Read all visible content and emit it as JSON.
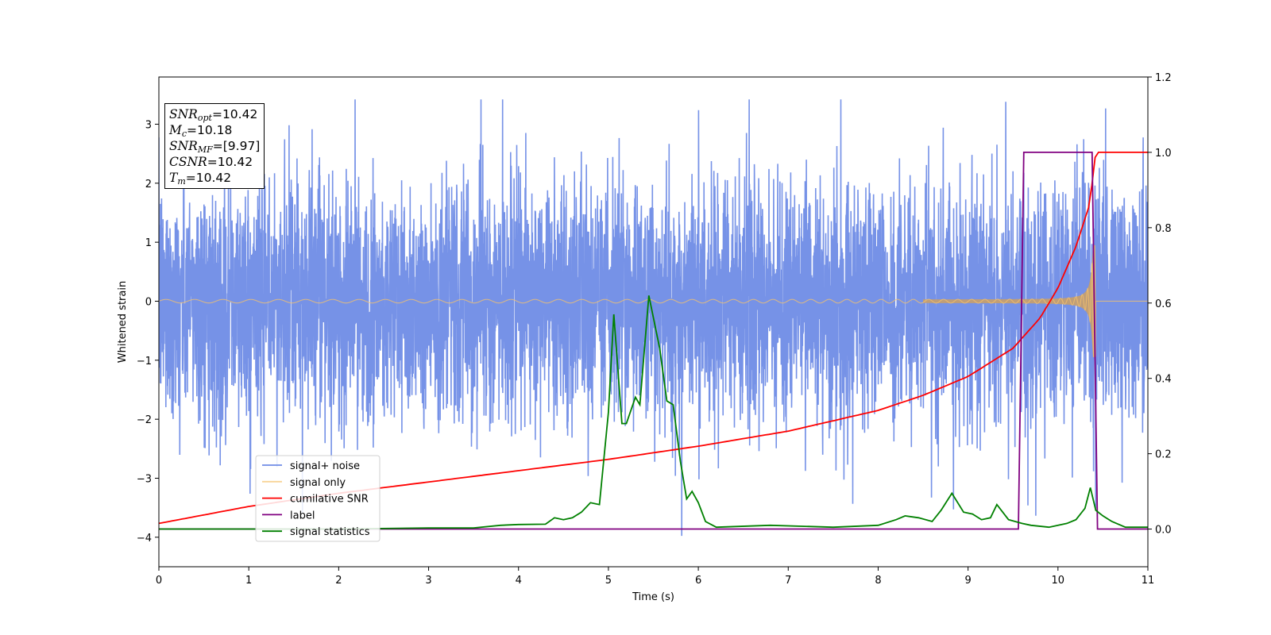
{
  "chart_data": {
    "type": "line",
    "xlabel": "Time (s)",
    "ylabel_left": "Whitened strain",
    "ylabel_right": "",
    "xlim": [
      0,
      11
    ],
    "ylim_left": [
      -4.5,
      3.8
    ],
    "ylim_right": [
      -0.1,
      1.2
    ],
    "x_ticks": [
      0,
      1,
      2,
      3,
      4,
      5,
      6,
      7,
      8,
      9,
      10,
      11
    ],
    "y_left_ticks": [
      -4,
      -3,
      -2,
      -1,
      0,
      1,
      2,
      3
    ],
    "y_right_ticks": [
      0.0,
      0.2,
      0.4,
      0.6,
      0.8,
      1.0,
      1.2
    ],
    "legend_position": "lower-left",
    "series": [
      {
        "name": "signal+ noise",
        "axis": "left",
        "color": "#6f8ce6",
        "description": "whitened noise plus signal, roughly within -4.2 to 3.4"
      },
      {
        "name": "signal only",
        "axis": "left",
        "color": "#f5c26b",
        "description": "chirp signal growing in amplitude until merger near 10.42 s"
      },
      {
        "name": "cumilative SNR",
        "axis": "right",
        "color": "#ff0000",
        "x": [
          0,
          1,
          2,
          3,
          4,
          5,
          6,
          7,
          8,
          8.5,
          9,
          9.5,
          9.8,
          10.0,
          10.2,
          10.35,
          10.42,
          11
        ],
        "values": [
          0.015,
          0.06,
          0.095,
          0.125,
          0.155,
          0.185,
          0.22,
          0.26,
          0.315,
          0.355,
          0.405,
          0.48,
          0.56,
          0.64,
          0.75,
          0.86,
          1.0,
          1.0
        ]
      },
      {
        "name": "label",
        "axis": "right",
        "color": "#800080",
        "x": [
          0,
          9.56,
          9.62,
          10.38,
          10.44,
          11
        ],
        "values": [
          0,
          0,
          1,
          1,
          0,
          0
        ]
      },
      {
        "name": "signal statistics",
        "axis": "right",
        "color": "#008000",
        "x": [
          0,
          1,
          2,
          3,
          3.5,
          3.8,
          4.0,
          4.3,
          4.4,
          4.5,
          4.6,
          4.7,
          4.8,
          4.9,
          5.0,
          5.06,
          5.15,
          5.2,
          5.3,
          5.35,
          5.45,
          5.57,
          5.65,
          5.72,
          5.8,
          5.87,
          5.93,
          6.0,
          6.08,
          6.2,
          6.8,
          7.5,
          8.0,
          8.2,
          8.3,
          8.45,
          8.6,
          8.7,
          8.82,
          8.95,
          9.05,
          9.15,
          9.25,
          9.32,
          9.45,
          9.6,
          9.7,
          9.9,
          10.1,
          10.2,
          10.3,
          10.36,
          10.42,
          10.5,
          10.6,
          10.75,
          11
        ],
        "values": [
          0.0,
          0.0,
          0.0,
          0.003,
          0.003,
          0.01,
          0.012,
          0.013,
          0.03,
          0.025,
          0.03,
          0.045,
          0.07,
          0.065,
          0.31,
          0.57,
          0.28,
          0.28,
          0.35,
          0.33,
          0.62,
          0.48,
          0.34,
          0.33,
          0.18,
          0.08,
          0.1,
          0.07,
          0.02,
          0.005,
          0.01,
          0.005,
          0.01,
          0.025,
          0.035,
          0.03,
          0.02,
          0.05,
          0.095,
          0.045,
          0.04,
          0.025,
          0.03,
          0.065,
          0.025,
          0.015,
          0.01,
          0.005,
          0.015,
          0.025,
          0.055,
          0.11,
          0.05,
          0.035,
          0.02,
          0.005,
          0.005
        ]
      }
    ],
    "annotation": {
      "snr_opt_label": "SNR",
      "snr_opt_sub": "opt",
      "snr_opt_value": "=10.42",
      "mc_label": "M",
      "mc_sub": "c",
      "mc_value": "=10.18",
      "snr_mf_label": "SNR",
      "snr_mf_sub": "MF",
      "snr_mf_value": "=[9.97]",
      "csnr_label": "CSNR",
      "csnr_value": "=10.42",
      "tm_label": "T",
      "tm_sub": "m",
      "tm_value": "=10.42"
    }
  }
}
